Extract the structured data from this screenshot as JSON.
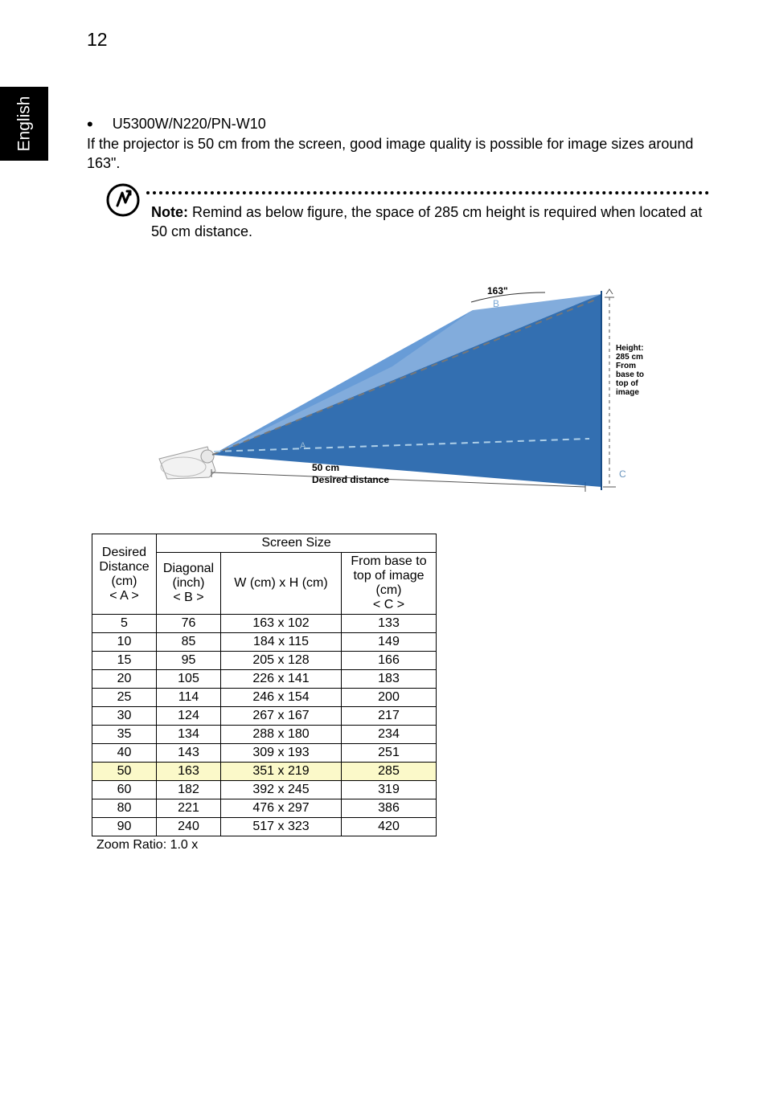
{
  "page_number": "12",
  "side_tab": "English",
  "model_line": "U5300W/N220/PN-W10",
  "intro": "If the projector is 50 cm from the screen, good image quality is possible for image sizes around 163\".",
  "note_label": "Note:",
  "note_body": " Remind as below figure, the space of 285 cm height is required when located at 50 cm distance.",
  "diagram": {
    "screen_diag_label": "163\"",
    "b_label": "B",
    "a_label": "A",
    "dist_label_1": "50 cm",
    "dist_label_2": "Desired distance",
    "c_label": "C",
    "height_label": "Height:\n285 cm\nFrom\nbase to\ntop of\nimage"
  },
  "table": {
    "head_desired": "Desired Distance (cm)",
    "head_a": "< A >",
    "head_screen": "Screen Size",
    "head_diag": "Diagonal (inch)",
    "head_b": "< B >",
    "head_wh": "W (cm) x H (cm)",
    "head_base": "From base to top of image (cm)",
    "head_c": "< C >",
    "rows": [
      {
        "a": "5",
        "b": "76",
        "wh": "163 x 102",
        "c": "133",
        "hl": false
      },
      {
        "a": "10",
        "b": "85",
        "wh": "184 x 115",
        "c": "149",
        "hl": false
      },
      {
        "a": "15",
        "b": "95",
        "wh": "205 x 128",
        "c": "166",
        "hl": false
      },
      {
        "a": "20",
        "b": "105",
        "wh": "226 x 141",
        "c": "183",
        "hl": false
      },
      {
        "a": "25",
        "b": "114",
        "wh": "246 x 154",
        "c": "200",
        "hl": false
      },
      {
        "a": "30",
        "b": "124",
        "wh": "267 x 167",
        "c": "217",
        "hl": false
      },
      {
        "a": "35",
        "b": "134",
        "wh": "288 x 180",
        "c": "234",
        "hl": false
      },
      {
        "a": "40",
        "b": "143",
        "wh": "309 x 193",
        "c": "251",
        "hl": false
      },
      {
        "a": "50",
        "b": "163",
        "wh": "351 x 219",
        "c": "285",
        "hl": true
      },
      {
        "a": "60",
        "b": "182",
        "wh": "392 x 245",
        "c": "319",
        "hl": false
      },
      {
        "a": "80",
        "b": "221",
        "wh": "476 x 297",
        "c": "386",
        "hl": false
      },
      {
        "a": "90",
        "b": "240",
        "wh": "517 x 323",
        "c": "420",
        "hl": false
      }
    ]
  },
  "zoom_ratio": "Zoom Ratio: 1.0 x"
}
